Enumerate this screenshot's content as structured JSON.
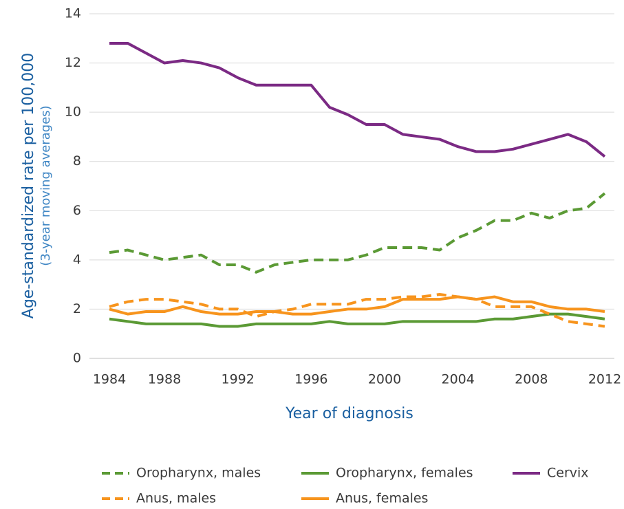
{
  "chart_data": {
    "type": "line",
    "y_label": "Age-standardized rate per 100,000",
    "y_sublabel": "(3-year moving averages)",
    "x_label": "Year of diagnosis",
    "categories": [
      "1984",
      null,
      null,
      "1988",
      null,
      null,
      null,
      "1992",
      null,
      null,
      null,
      "1996",
      null,
      null,
      null,
      "2000",
      null,
      null,
      null,
      "2004",
      null,
      null,
      null,
      "2008",
      null,
      null,
      null,
      "2012"
    ],
    "series": [
      {
        "name": "Oropharynx, males",
        "color": "#5b9a35",
        "line_style": "dashed",
        "values": [
          4.3,
          4.4,
          4.2,
          4.0,
          4.1,
          4.2,
          3.8,
          3.8,
          3.5,
          3.8,
          3.9,
          4.0,
          4.0,
          4.0,
          4.2,
          4.5,
          4.5,
          4.5,
          4.4,
          4.9,
          5.2,
          5.6,
          5.6,
          5.9,
          5.7,
          6.0,
          6.1,
          6.7
        ]
      },
      {
        "name": "Oropharynx, females",
        "color": "#5b9a35",
        "line_style": "solid",
        "values": [
          1.6,
          1.5,
          1.4,
          1.4,
          1.4,
          1.4,
          1.3,
          1.3,
          1.4,
          1.4,
          1.4,
          1.4,
          1.5,
          1.4,
          1.4,
          1.4,
          1.5,
          1.5,
          1.5,
          1.5,
          1.5,
          1.6,
          1.6,
          1.7,
          1.8,
          1.8,
          1.7,
          1.6
        ]
      },
      {
        "name": "Cervix",
        "color": "#7b2a84",
        "line_style": "solid",
        "values": [
          12.8,
          12.8,
          12.4,
          12.0,
          12.1,
          12.0,
          11.8,
          11.4,
          11.1,
          11.1,
          11.1,
          11.1,
          10.2,
          9.9,
          9.5,
          9.5,
          9.1,
          9.0,
          8.9,
          8.6,
          8.4,
          8.4,
          8.5,
          8.7,
          8.9,
          9.1,
          8.8,
          8.2
        ]
      },
      {
        "name": "Anus, males",
        "color": "#f7941d",
        "line_style": "dashed",
        "values": [
          2.1,
          2.3,
          2.4,
          2.4,
          2.3,
          2.2,
          2.0,
          2.0,
          1.7,
          1.9,
          2.0,
          2.2,
          2.2,
          2.2,
          2.4,
          2.4,
          2.5,
          2.5,
          2.6,
          2.5,
          2.4,
          2.1,
          2.1,
          2.1,
          1.8,
          1.5,
          1.4,
          1.3
        ]
      },
      {
        "name": "Anus, females",
        "color": "#f7941d",
        "line_style": "solid",
        "values": [
          2.0,
          1.8,
          1.9,
          1.9,
          2.1,
          1.9,
          1.8,
          1.8,
          1.9,
          1.9,
          1.8,
          1.8,
          1.9,
          2.0,
          2.0,
          2.1,
          2.4,
          2.4,
          2.4,
          2.5,
          2.4,
          2.5,
          2.3,
          2.3,
          2.1,
          2.0,
          2.0,
          1.9
        ]
      }
    ],
    "ylim": [
      0,
      14
    ],
    "yticks": [
      0,
      2,
      4,
      6,
      8,
      10,
      12,
      14
    ],
    "grid": true,
    "legend": "bottom"
  }
}
